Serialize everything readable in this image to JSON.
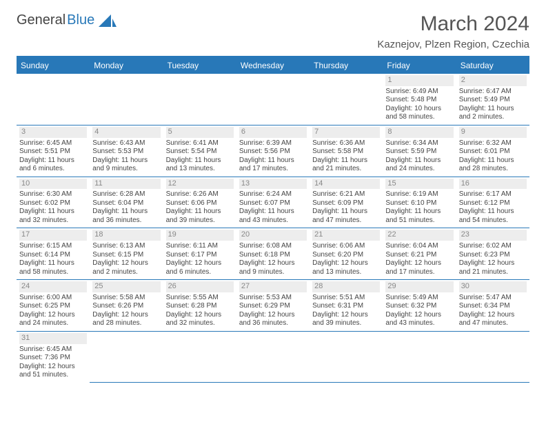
{
  "brand": {
    "part1": "General",
    "part2": "Blue"
  },
  "title": "March 2024",
  "location": "Kaznejov, Plzen Region, Czechia",
  "colors": {
    "accent": "#2878b8",
    "daybg": "#ededed",
    "daynum": "#888888",
    "text": "#444444"
  },
  "weekdays": [
    "Sunday",
    "Monday",
    "Tuesday",
    "Wednesday",
    "Thursday",
    "Friday",
    "Saturday"
  ],
  "weeks": [
    [
      null,
      null,
      null,
      null,
      null,
      {
        "d": "1",
        "sr": "Sunrise: 6:49 AM",
        "ss": "Sunset: 5:48 PM",
        "dl1": "Daylight: 10 hours",
        "dl2": "and 58 minutes."
      },
      {
        "d": "2",
        "sr": "Sunrise: 6:47 AM",
        "ss": "Sunset: 5:49 PM",
        "dl1": "Daylight: 11 hours",
        "dl2": "and 2 minutes."
      }
    ],
    [
      {
        "d": "3",
        "sr": "Sunrise: 6:45 AM",
        "ss": "Sunset: 5:51 PM",
        "dl1": "Daylight: 11 hours",
        "dl2": "and 6 minutes."
      },
      {
        "d": "4",
        "sr": "Sunrise: 6:43 AM",
        "ss": "Sunset: 5:53 PM",
        "dl1": "Daylight: 11 hours",
        "dl2": "and 9 minutes."
      },
      {
        "d": "5",
        "sr": "Sunrise: 6:41 AM",
        "ss": "Sunset: 5:54 PM",
        "dl1": "Daylight: 11 hours",
        "dl2": "and 13 minutes."
      },
      {
        "d": "6",
        "sr": "Sunrise: 6:39 AM",
        "ss": "Sunset: 5:56 PM",
        "dl1": "Daylight: 11 hours",
        "dl2": "and 17 minutes."
      },
      {
        "d": "7",
        "sr": "Sunrise: 6:36 AM",
        "ss": "Sunset: 5:58 PM",
        "dl1": "Daylight: 11 hours",
        "dl2": "and 21 minutes."
      },
      {
        "d": "8",
        "sr": "Sunrise: 6:34 AM",
        "ss": "Sunset: 5:59 PM",
        "dl1": "Daylight: 11 hours",
        "dl2": "and 24 minutes."
      },
      {
        "d": "9",
        "sr": "Sunrise: 6:32 AM",
        "ss": "Sunset: 6:01 PM",
        "dl1": "Daylight: 11 hours",
        "dl2": "and 28 minutes."
      }
    ],
    [
      {
        "d": "10",
        "sr": "Sunrise: 6:30 AM",
        "ss": "Sunset: 6:02 PM",
        "dl1": "Daylight: 11 hours",
        "dl2": "and 32 minutes."
      },
      {
        "d": "11",
        "sr": "Sunrise: 6:28 AM",
        "ss": "Sunset: 6:04 PM",
        "dl1": "Daylight: 11 hours",
        "dl2": "and 36 minutes."
      },
      {
        "d": "12",
        "sr": "Sunrise: 6:26 AM",
        "ss": "Sunset: 6:06 PM",
        "dl1": "Daylight: 11 hours",
        "dl2": "and 39 minutes."
      },
      {
        "d": "13",
        "sr": "Sunrise: 6:24 AM",
        "ss": "Sunset: 6:07 PM",
        "dl1": "Daylight: 11 hours",
        "dl2": "and 43 minutes."
      },
      {
        "d": "14",
        "sr": "Sunrise: 6:21 AM",
        "ss": "Sunset: 6:09 PM",
        "dl1": "Daylight: 11 hours",
        "dl2": "and 47 minutes."
      },
      {
        "d": "15",
        "sr": "Sunrise: 6:19 AM",
        "ss": "Sunset: 6:10 PM",
        "dl1": "Daylight: 11 hours",
        "dl2": "and 51 minutes."
      },
      {
        "d": "16",
        "sr": "Sunrise: 6:17 AM",
        "ss": "Sunset: 6:12 PM",
        "dl1": "Daylight: 11 hours",
        "dl2": "and 54 minutes."
      }
    ],
    [
      {
        "d": "17",
        "sr": "Sunrise: 6:15 AM",
        "ss": "Sunset: 6:14 PM",
        "dl1": "Daylight: 11 hours",
        "dl2": "and 58 minutes."
      },
      {
        "d": "18",
        "sr": "Sunrise: 6:13 AM",
        "ss": "Sunset: 6:15 PM",
        "dl1": "Daylight: 12 hours",
        "dl2": "and 2 minutes."
      },
      {
        "d": "19",
        "sr": "Sunrise: 6:11 AM",
        "ss": "Sunset: 6:17 PM",
        "dl1": "Daylight: 12 hours",
        "dl2": "and 6 minutes."
      },
      {
        "d": "20",
        "sr": "Sunrise: 6:08 AM",
        "ss": "Sunset: 6:18 PM",
        "dl1": "Daylight: 12 hours",
        "dl2": "and 9 minutes."
      },
      {
        "d": "21",
        "sr": "Sunrise: 6:06 AM",
        "ss": "Sunset: 6:20 PM",
        "dl1": "Daylight: 12 hours",
        "dl2": "and 13 minutes."
      },
      {
        "d": "22",
        "sr": "Sunrise: 6:04 AM",
        "ss": "Sunset: 6:21 PM",
        "dl1": "Daylight: 12 hours",
        "dl2": "and 17 minutes."
      },
      {
        "d": "23",
        "sr": "Sunrise: 6:02 AM",
        "ss": "Sunset: 6:23 PM",
        "dl1": "Daylight: 12 hours",
        "dl2": "and 21 minutes."
      }
    ],
    [
      {
        "d": "24",
        "sr": "Sunrise: 6:00 AM",
        "ss": "Sunset: 6:25 PM",
        "dl1": "Daylight: 12 hours",
        "dl2": "and 24 minutes."
      },
      {
        "d": "25",
        "sr": "Sunrise: 5:58 AM",
        "ss": "Sunset: 6:26 PM",
        "dl1": "Daylight: 12 hours",
        "dl2": "and 28 minutes."
      },
      {
        "d": "26",
        "sr": "Sunrise: 5:55 AM",
        "ss": "Sunset: 6:28 PM",
        "dl1": "Daylight: 12 hours",
        "dl2": "and 32 minutes."
      },
      {
        "d": "27",
        "sr": "Sunrise: 5:53 AM",
        "ss": "Sunset: 6:29 PM",
        "dl1": "Daylight: 12 hours",
        "dl2": "and 36 minutes."
      },
      {
        "d": "28",
        "sr": "Sunrise: 5:51 AM",
        "ss": "Sunset: 6:31 PM",
        "dl1": "Daylight: 12 hours",
        "dl2": "and 39 minutes."
      },
      {
        "d": "29",
        "sr": "Sunrise: 5:49 AM",
        "ss": "Sunset: 6:32 PM",
        "dl1": "Daylight: 12 hours",
        "dl2": "and 43 minutes."
      },
      {
        "d": "30",
        "sr": "Sunrise: 5:47 AM",
        "ss": "Sunset: 6:34 PM",
        "dl1": "Daylight: 12 hours",
        "dl2": "and 47 minutes."
      }
    ],
    [
      {
        "d": "31",
        "sr": "Sunrise: 6:45 AM",
        "ss": "Sunset: 7:36 PM",
        "dl1": "Daylight: 12 hours",
        "dl2": "and 51 minutes."
      },
      null,
      null,
      null,
      null,
      null,
      null
    ]
  ]
}
